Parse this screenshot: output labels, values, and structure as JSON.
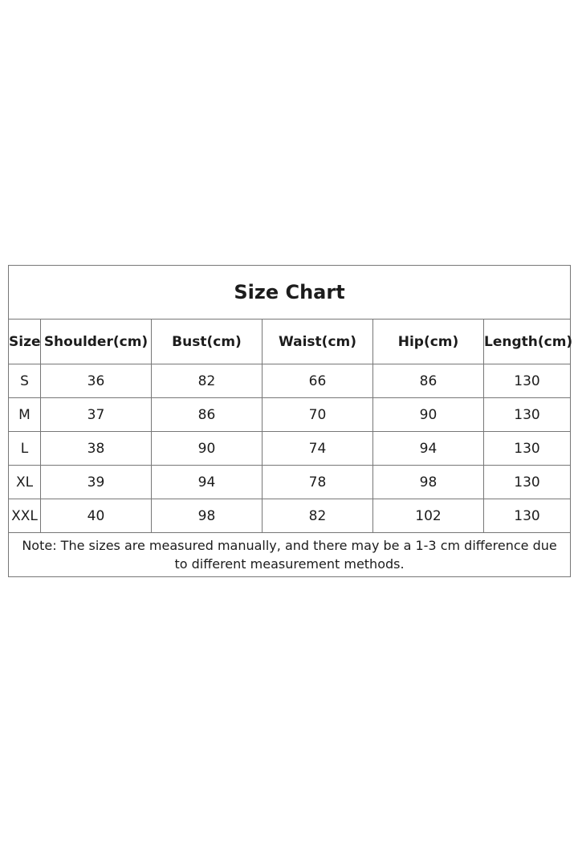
{
  "chart_data": {
    "type": "table",
    "title": "Size Chart",
    "columns": [
      "Size",
      "Shoulder(cm)",
      "Bust(cm)",
      "Waist(cm)",
      "Hip(cm)",
      "Length(cm)"
    ],
    "rows": [
      [
        "S",
        "36",
        "82",
        "66",
        "86",
        "130"
      ],
      [
        "M",
        "37",
        "86",
        "70",
        "90",
        "130"
      ],
      [
        "L",
        "38",
        "90",
        "74",
        "94",
        "130"
      ],
      [
        "XL",
        "39",
        "94",
        "78",
        "98",
        "130"
      ],
      [
        "XXL",
        "40",
        "98",
        "82",
        "102",
        "130"
      ]
    ],
    "note": "Note: The sizes are measured manually, and there may be a 1-3 cm difference due to different measurement methods.",
    "layout_hints": {
      "title_position": "top-center",
      "grid": "on",
      "all_columns_centered": true
    },
    "colors": {
      "border": "#777777",
      "text": "#1c1c1c",
      "background": "#ffffff"
    }
  }
}
